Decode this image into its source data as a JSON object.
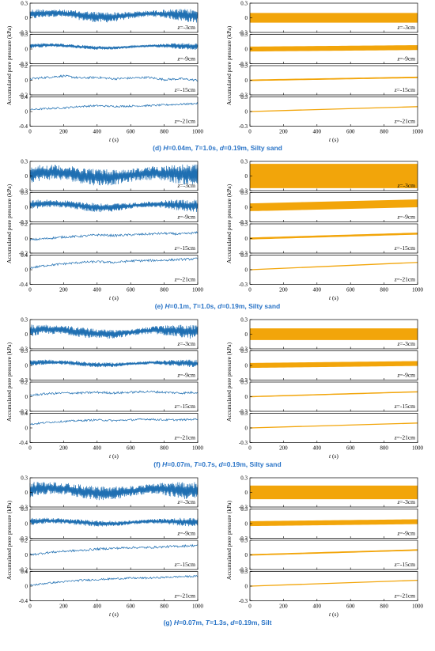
{
  "figure": {
    "x_axis_label": "t (s)",
    "y_axis_label": "Accumulated pore pressure (kPa)",
    "colors": {
      "measured": "#1f6fb2",
      "predicted": "#f2a50a",
      "caption": "#2a74c7",
      "axis": "#000000"
    }
  },
  "chart_data": [
    {
      "type": "line",
      "caption": "(d) H=0.04m, T=1.0s, d=0.19m, Silty sand",
      "x_range": [
        0,
        1000
      ],
      "x_ticks": [
        "0",
        "200",
        "400",
        "600",
        "800",
        "1000"
      ],
      "left": [
        {
          "label": "z=-3cm",
          "y_ticks": [
            "0.3",
            "0",
            "-0.3"
          ],
          "ylim": [
            -0.3,
            0.3
          ],
          "style": "band",
          "band_low": [
            -0.1,
            0.02
          ],
          "band_high": [
            0.12,
            0.18
          ]
        },
        {
          "label": "z=-9cm",
          "y_ticks": [
            "0.3",
            "0",
            "-0.3"
          ],
          "ylim": [
            -0.3,
            0.3
          ],
          "style": "band",
          "band_low": [
            -0.02,
            0.04
          ],
          "band_high": [
            0.06,
            0.12
          ]
        },
        {
          "label": "z=-15cm",
          "y_ticks": [
            "0.2",
            "0",
            "-0.2"
          ],
          "ylim": [
            -0.2,
            0.2
          ],
          "style": "trace",
          "trace": [
            0.02,
            0.04,
            0.06,
            0.03,
            0.04,
            0.02,
            0.03,
            0.04,
            0.01,
            0.02,
            0.0
          ],
          "noise": 0.03
        },
        {
          "label": "z=-21cm",
          "y_ticks": [
            "0.4",
            "0",
            "-0.4"
          ],
          "ylim": [
            -0.4,
            0.4
          ],
          "style": "trace",
          "trace": [
            0.05,
            0.08,
            0.1,
            0.14,
            0.16,
            0.14,
            0.15,
            0.16,
            0.18,
            0.2,
            0.22
          ],
          "noise": 0.05
        }
      ],
      "right": [
        {
          "label": "z=-3cm",
          "y_ticks": [
            "0.3",
            "0",
            "-0.3"
          ],
          "ylim": [
            -0.3,
            0.3
          ],
          "line": [
            0.0,
            0.0
          ],
          "amplitude": 0.1
        },
        {
          "label": "z=-9cm",
          "y_ticks": [
            "0.3",
            "0",
            "-0.3"
          ],
          "ylim": [
            -0.3,
            0.3
          ],
          "line": [
            0.0,
            0.03
          ],
          "amplitude": 0.05
        },
        {
          "label": "z=-15cm",
          "y_ticks": [
            "0.3",
            "0",
            "-0.3"
          ],
          "ylim": [
            -0.3,
            0.3
          ],
          "line": [
            0.0,
            0.06
          ],
          "amplitude": 0.015
        },
        {
          "label": "z=-21cm",
          "y_ticks": [
            "0.3",
            "0",
            "-0.3"
          ],
          "ylim": [
            -0.3,
            0.3
          ],
          "line": [
            0.0,
            0.1
          ],
          "amplitude": 0.005
        }
      ]
    },
    {
      "type": "line",
      "caption": "(e) H=0.1m, T=1.0s, d=0.19m, Silty sand",
      "x_range": [
        0,
        1000
      ],
      "x_ticks": [
        "0",
        "200",
        "400",
        "600",
        "800",
        "1000"
      ],
      "left": [
        {
          "label": "z=-3cm",
          "y_ticks": [
            "0.3",
            "0",
            "-0.3"
          ],
          "ylim": [
            -0.3,
            0.3
          ],
          "style": "band",
          "band_low": [
            -0.2,
            -0.08
          ],
          "band_high": [
            0.14,
            0.24
          ]
        },
        {
          "label": "z=-9cm",
          "y_ticks": [
            "0.3",
            "0",
            "-0.3"
          ],
          "ylim": [
            -0.3,
            0.3
          ],
          "style": "band",
          "band_low": [
            -0.1,
            0.0
          ],
          "band_high": [
            0.08,
            0.16
          ]
        },
        {
          "label": "z=-15cm",
          "y_ticks": [
            "0.2",
            "0",
            "-0.2"
          ],
          "ylim": [
            -0.2,
            0.2
          ],
          "style": "trace",
          "trace": [
            -0.02,
            0.0,
            0.02,
            0.03,
            0.05,
            0.04,
            0.05,
            0.06,
            0.07,
            0.06,
            0.08
          ],
          "noise": 0.03
        },
        {
          "label": "z=-21cm",
          "y_ticks": [
            "0.4",
            "0",
            "-0.4"
          ],
          "ylim": [
            -0.4,
            0.4
          ],
          "style": "trace",
          "trace": [
            0.05,
            0.12,
            0.16,
            0.2,
            0.22,
            0.2,
            0.24,
            0.25,
            0.26,
            0.28,
            0.3
          ],
          "noise": 0.06
        }
      ],
      "right": [
        {
          "label": "z=-3cm",
          "y_ticks": [
            "0.3",
            "0",
            "-0.3"
          ],
          "ylim": [
            -0.3,
            0.3
          ],
          "line": [
            0.0,
            0.0
          ],
          "amplitude": 0.25
        },
        {
          "label": "z=-9cm",
          "y_ticks": [
            "0.3",
            "0",
            "-0.3"
          ],
          "ylim": [
            -0.3,
            0.3
          ],
          "line": [
            0.0,
            0.08
          ],
          "amplitude": 0.08
        },
        {
          "label": "z=-15cm",
          "y_ticks": [
            "0.3",
            "0",
            "-0.3"
          ],
          "ylim": [
            -0.3,
            0.3
          ],
          "line": [
            0.0,
            0.1
          ],
          "amplitude": 0.02
        },
        {
          "label": "z=-21cm",
          "y_ticks": [
            "0.3",
            "0",
            "-0.3"
          ],
          "ylim": [
            -0.3,
            0.3
          ],
          "line": [
            0.0,
            0.15
          ],
          "amplitude": 0.006
        }
      ]
    },
    {
      "type": "line",
      "caption": "(f) H=0.07m, T=0.7s, d=0.19m, Silty sand",
      "x_range": [
        0,
        1000
      ],
      "x_ticks": [
        "0",
        "200",
        "400",
        "600",
        "800",
        "1000"
      ],
      "left": [
        {
          "label": "z=-3cm",
          "y_ticks": [
            "0.3",
            "0",
            "-0.3"
          ],
          "ylim": [
            -0.3,
            0.3
          ],
          "style": "band",
          "band_low": [
            -0.1,
            0.0
          ],
          "band_high": [
            0.1,
            0.2
          ]
        },
        {
          "label": "z=-9cm",
          "y_ticks": [
            "0.3",
            "0",
            "-0.3"
          ],
          "ylim": [
            -0.3,
            0.3
          ],
          "style": "band",
          "band_low": [
            -0.04,
            0.02
          ],
          "band_high": [
            0.06,
            0.12
          ]
        },
        {
          "label": "z=-15cm",
          "y_ticks": [
            "0.2",
            "0",
            "-0.2"
          ],
          "ylim": [
            -0.2,
            0.2
          ],
          "style": "trace",
          "trace": [
            0.02,
            0.04,
            0.05,
            0.05,
            0.06,
            0.05,
            0.06,
            0.07,
            0.06,
            0.05,
            0.06
          ],
          "noise": 0.03
        },
        {
          "label": "z=-21cm",
          "y_ticks": [
            "0.4",
            "0",
            "-0.4"
          ],
          "ylim": [
            -0.4,
            0.4
          ],
          "style": "trace",
          "trace": [
            0.1,
            0.15,
            0.18,
            0.2,
            0.22,
            0.2,
            0.22,
            0.24,
            0.22,
            0.22,
            0.24
          ],
          "noise": 0.05
        }
      ],
      "right": [
        {
          "label": "z=-3cm",
          "y_ticks": [
            "0.3",
            "0",
            "-0.3"
          ],
          "ylim": [
            -0.3,
            0.3
          ],
          "line": [
            0.0,
            0.0
          ],
          "amplitude": 0.12
        },
        {
          "label": "z=-9cm",
          "y_ticks": [
            "0.3",
            "0",
            "-0.3"
          ],
          "ylim": [
            -0.3,
            0.3
          ],
          "line": [
            0.0,
            0.04
          ],
          "amplitude": 0.05
        },
        {
          "label": "z=-15cm",
          "y_ticks": [
            "0.3",
            "0",
            "-0.3"
          ],
          "ylim": [
            -0.3,
            0.3
          ],
          "line": [
            0.0,
            0.1
          ],
          "amplitude": 0.012
        },
        {
          "label": "z=-21cm",
          "y_ticks": [
            "0.3",
            "0",
            "-0.3"
          ],
          "ylim": [
            -0.3,
            0.3
          ],
          "line": [
            0.0,
            0.1
          ],
          "amplitude": 0.004
        }
      ]
    },
    {
      "type": "line",
      "caption": "(g) H=0.07m, T=1.3s, d=0.19m, Silt",
      "x_range": [
        0,
        1000
      ],
      "x_ticks": [
        "0",
        "200",
        "400",
        "600",
        "800",
        "1000"
      ],
      "left": [
        {
          "label": "z=-3cm",
          "y_ticks": [
            "0.3",
            "0",
            "-0.3"
          ],
          "ylim": [
            -0.3,
            0.3
          ],
          "style": "band",
          "band_low": [
            -0.16,
            -0.04
          ],
          "band_high": [
            0.12,
            0.22
          ]
        },
        {
          "label": "z=-9cm",
          "y_ticks": [
            "0.3",
            "0",
            "-0.3"
          ],
          "ylim": [
            -0.3,
            0.3
          ],
          "style": "band",
          "band_low": [
            -0.06,
            0.0
          ],
          "band_high": [
            0.06,
            0.12
          ]
        },
        {
          "label": "z=-15cm",
          "y_ticks": [
            "0.2",
            "0",
            "-0.2"
          ],
          "ylim": [
            -0.2,
            0.2
          ],
          "style": "trace",
          "trace": [
            0.0,
            0.03,
            0.05,
            0.06,
            0.08,
            0.09,
            0.1,
            0.1,
            0.11,
            0.12,
            0.13
          ],
          "noise": 0.03
        },
        {
          "label": "z=-21cm",
          "y_ticks": [
            "0.4",
            "0",
            "-0.4"
          ],
          "ylim": [
            -0.4,
            0.4
          ],
          "style": "trace",
          "trace": [
            0.02,
            0.08,
            0.12,
            0.16,
            0.18,
            0.2,
            0.22,
            0.22,
            0.24,
            0.26,
            0.27
          ],
          "noise": 0.05
        }
      ],
      "right": [
        {
          "label": "z=-3cm",
          "y_ticks": [
            "0.3",
            "0",
            "-0.3"
          ],
          "ylim": [
            -0.3,
            0.3
          ],
          "line": [
            0.0,
            0.0
          ],
          "amplitude": 0.14
        },
        {
          "label": "z=-9cm",
          "y_ticks": [
            "0.3",
            "0",
            "-0.3"
          ],
          "ylim": [
            -0.3,
            0.3
          ],
          "line": [
            0.0,
            0.04
          ],
          "amplitude": 0.05
        },
        {
          "label": "z=-15cm",
          "y_ticks": [
            "0.3",
            "0",
            "-0.3"
          ],
          "ylim": [
            -0.3,
            0.3
          ],
          "line": [
            0.0,
            0.1
          ],
          "amplitude": 0.015
        },
        {
          "label": "z=-21cm",
          "y_ticks": [
            "0.3",
            "0",
            "-0.3"
          ],
          "ylim": [
            -0.3,
            0.3
          ],
          "line": [
            0.0,
            0.12
          ],
          "amplitude": 0.004
        }
      ]
    }
  ]
}
